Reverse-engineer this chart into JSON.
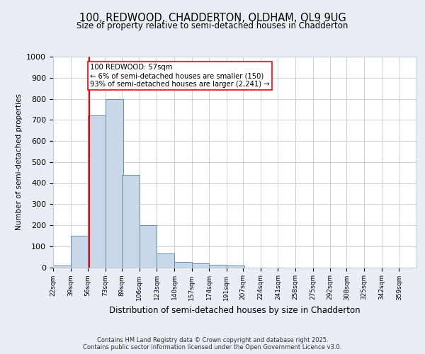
{
  "title1": "100, REDWOOD, CHADDERTON, OLDHAM, OL9 9UG",
  "title2": "Size of property relative to semi-detached houses in Chadderton",
  "xlabel": "Distribution of semi-detached houses by size in Chadderton",
  "ylabel": "Number of semi-detached properties",
  "bin_labels": [
    "22sqm",
    "39sqm",
    "56sqm",
    "73sqm",
    "89sqm",
    "106sqm",
    "123sqm",
    "140sqm",
    "157sqm",
    "174sqm",
    "191sqm",
    "207sqm",
    "224sqm",
    "241sqm",
    "258sqm",
    "275sqm",
    "292sqm",
    "308sqm",
    "325sqm",
    "342sqm",
    "359sqm"
  ],
  "bin_edges": [
    22,
    39,
    56,
    73,
    89,
    106,
    123,
    140,
    157,
    174,
    191,
    207,
    224,
    241,
    258,
    275,
    292,
    308,
    325,
    342,
    359
  ],
  "bar_heights": [
    8,
    150,
    720,
    800,
    440,
    200,
    65,
    25,
    20,
    12,
    8,
    0,
    0,
    0,
    0,
    0,
    0,
    0,
    0,
    0
  ],
  "bar_color": "#c8d8e8",
  "bar_edge_color": "#6090b0",
  "property_size": 57,
  "vline_x": 57,
  "vline_color": "red",
  "annotation_text": "100 REDWOOD: 57sqm\n← 6% of semi-detached houses are smaller (150)\n93% of semi-detached houses are larger (2,241) →",
  "annotation_box_color": "white",
  "annotation_box_edge_color": "red",
  "ylim": [
    0,
    1000
  ],
  "yticks": [
    0,
    100,
    200,
    300,
    400,
    500,
    600,
    700,
    800,
    900,
    1000
  ],
  "footer": "Contains HM Land Registry data © Crown copyright and database right 2025.\nContains public sector information licensed under the Open Government Licence v3.0.",
  "bg_color": "#e8eef4",
  "plot_bg_color": "#ffffff",
  "grid_color": "#c0ccd8"
}
